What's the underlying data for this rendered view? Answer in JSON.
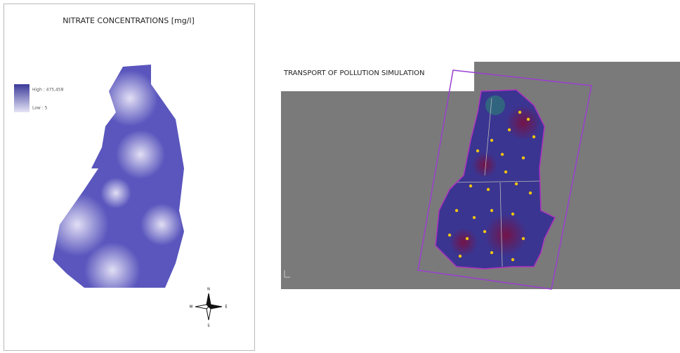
{
  "left_map": {
    "title": "NITRATE CONCENTRATIONS [mg/l]",
    "legend": {
      "high": "High : 475,458",
      "low": "Low : 5"
    },
    "compass": {
      "north": "N",
      "south": "S",
      "east": "E",
      "west": "W"
    }
  },
  "right_map": {
    "title": "TRANSPORT OF POLLUTION SIMULATION"
  }
}
